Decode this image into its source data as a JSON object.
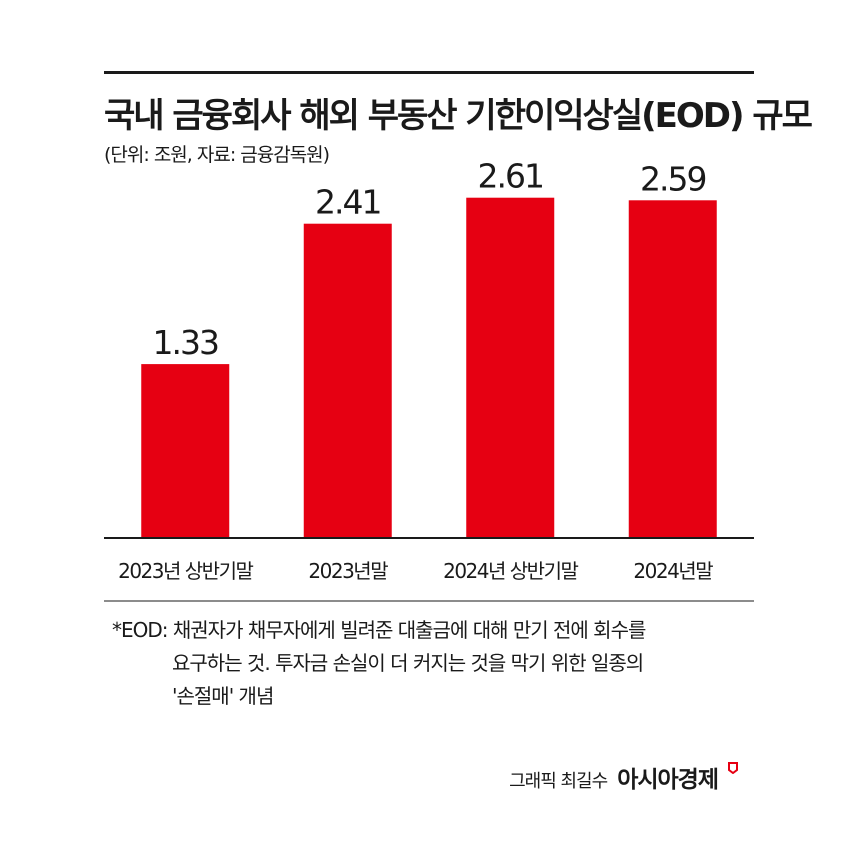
{
  "title": "국내 금융회사 해외 부동산 기한이익상실(EOD) 규모",
  "subtitle": "(단위: 조원, 자료: 금융감독원)",
  "chart_data": {
    "type": "bar",
    "categories": [
      "2023년 상반기말",
      "2023년말",
      "2024년 상반기말",
      "2024년말"
    ],
    "values": [
      1.33,
      2.41,
      2.61,
      2.59
    ],
    "value_labels": [
      "1.33",
      "2.41",
      "2.61",
      "2.59"
    ],
    "unit": "조원",
    "ylim": [
      0,
      3.0
    ],
    "bar_color": "#e60012",
    "grid": false,
    "legend": "none"
  },
  "footnote": {
    "line1": "*EOD: 채권자가 채무자에게 빌려준 대출금에 대해 만기 전에 회수를",
    "line2": "요구하는 것. 투자금 손실이 더 커지는 것을 막기 위한 일종의",
    "line3": "'손절매' 개념"
  },
  "credit": {
    "graphic": "그래픽 최길수",
    "brand": "아시아경제"
  },
  "colors": {
    "accent": "#e60012",
    "text": "#1a1a1a"
  }
}
